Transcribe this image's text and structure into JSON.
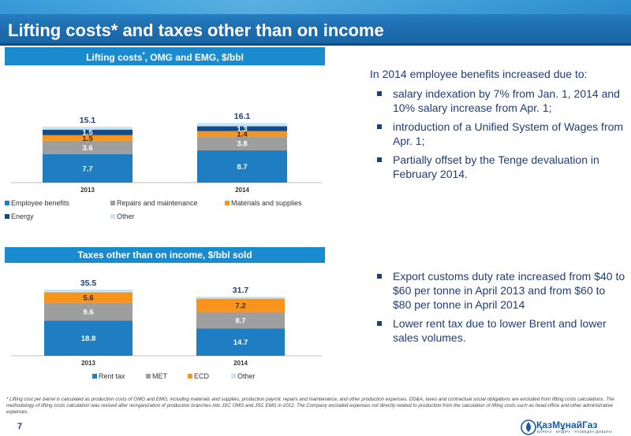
{
  "title": "Lifting costs* and taxes other than on income",
  "page_number": "7",
  "chart_panels": [
    {
      "title_main": "Lifting costs",
      "title_sup": "*",
      "title_rest": ", OMG and EMG, $/bbl"
    },
    {
      "title_main": "Taxes other than on income, $/bbl sold",
      "title_sup": "",
      "title_rest": ""
    }
  ],
  "chart_data": [
    {
      "type": "bar",
      "stacked": true,
      "categories": [
        "2013",
        "2014"
      ],
      "series": [
        {
          "name": "Employee benefits",
          "values": [
            7.7,
            8.7
          ],
          "color": "#1f7ec2"
        },
        {
          "name": "Repairs and maintenance",
          "values": [
            3.6,
            3.8
          ],
          "color": "#9e9e9e"
        },
        {
          "name": "Materials and supplies",
          "values": [
            1.5,
            1.4
          ],
          "color": "#f7941d"
        },
        {
          "name": "Energy",
          "values": [
            1.5,
            1.3
          ],
          "color": "#124c8a"
        },
        {
          "name": "Other",
          "values": [
            0.8,
            0.9
          ],
          "color": "#c6e6f7"
        }
      ],
      "value_labels": [
        [
          "7.7",
          "8.7"
        ],
        [
          "3.6",
          "3.8"
        ],
        [
          "1.5",
          "1.4"
        ],
        [
          "1.5",
          "1.3"
        ],
        [
          "",
          ""
        ]
      ],
      "totals": [
        "15.1",
        "16.1"
      ],
      "legend_position": "bottom",
      "ylim": [
        0,
        17
      ]
    },
    {
      "type": "bar",
      "stacked": true,
      "categories": [
        "2013",
        "2014"
      ],
      "series": [
        {
          "name": "Rent tax",
          "values": [
            18.8,
            14.7
          ],
          "color": "#1f7ec2"
        },
        {
          "name": "MET",
          "values": [
            9.6,
            8.7
          ],
          "color": "#9e9e9e"
        },
        {
          "name": "ECD",
          "values": [
            5.6,
            7.2
          ],
          "color": "#f7941d"
        },
        {
          "name": "Other",
          "values": [
            1.5,
            1.1
          ],
          "color": "#c6e6f7"
        }
      ],
      "value_labels": [
        [
          "18.8",
          "14.7"
        ],
        [
          "9.6",
          "8.7"
        ],
        [
          "5.6",
          "7.2"
        ],
        [
          "",
          ""
        ]
      ],
      "totals": [
        "35.5",
        "31.7"
      ],
      "legend_position": "bottom",
      "ylim": [
        0,
        38
      ]
    }
  ],
  "intro_text": "In 2014 employee benefits increased due to:",
  "bullets_top": [
    "salary indexation by 7% from Jan. 1, 2014 and 10% salary increase from Apr. 1;",
    "introduction of a Unified System of Wages from Apr. 1;",
    "Partially offset by the Tenge devaluation in February 2014."
  ],
  "bullets_bottom": [
    "Export customs duty rate increased from $40 to $60 per tonne in April 2013 and from $60 to $80 per tonne in April 2014",
    "Lower rent tax due to lower Brent and lower sales volumes."
  ],
  "footnote": "* Lifting cost per barrel is calculated as production costs of OMG and EMG, including materials and supplies, production payroll, repairs and maintenance, and other production expenses. DD&A, taxes and contractual social obligations are excluded from lifting costs calculations. The methodology of lifting costs calculation was revised after reorganization of production branches into JSC OMG and JSC EMG in 2012. The Company excluded expenses not directly related to production from the calculation of lifting costs such as head-office and other administrative expenses.",
  "logo_text": "ҚазМұнайГаз",
  "logo_tagline": "БАРЛАУ · ӨНДІРУ · РАЗВЕДКА ДОБЫЧА",
  "colors": {
    "header": "#1f6fb2",
    "panel": "#1b8bcf",
    "text_blue": "#1f3d7a"
  }
}
